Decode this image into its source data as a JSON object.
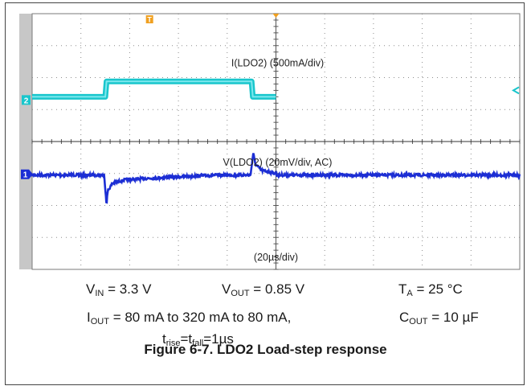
{
  "chart_data": {
    "type": "line",
    "title": "",
    "xlabel": "(20µs/div)",
    "time_per_div_us": 20,
    "divisions": {
      "x": 10,
      "y": 8
    },
    "grid": true,
    "series": [
      {
        "name": "I(LDO2) (500mA/div)",
        "channel": "2",
        "color": "#19c6cc",
        "scale_mA_per_div": 500,
        "x_us": [
          0,
          20,
          30,
          30.5,
          80,
          90,
          90.5,
          100
        ],
        "y_mA": [
          80,
          80,
          80,
          320,
          320,
          320,
          80,
          80
        ]
      },
      {
        "name": "V(LDO2) (20mV/div, AC)",
        "channel": "1",
        "color": "#1c2ed4",
        "scale_mV_per_div": 20,
        "x_us": [
          0,
          20,
          29.5,
          30,
          30.5,
          31,
          33,
          38,
          48,
          60,
          75,
          89.5,
          90,
          90.7,
          91.5,
          94,
          100,
          100.5
        ],
        "y_mV": [
          0,
          0,
          0,
          -8,
          -18,
          -10,
          -5,
          -3,
          -2,
          -1,
          0,
          0,
          5,
          14,
          7,
          3,
          1,
          0
        ]
      }
    ],
    "trigger_marker": "T"
  },
  "conditions": {
    "vin": {
      "sym": "V",
      "sub": "IN",
      "val": " = 3.3 V"
    },
    "vout": {
      "sym": "V",
      "sub": "OUT",
      "val": " = 0.85 V"
    },
    "ta": {
      "sym": "T",
      "sub": "A",
      "val": " = 25 °C"
    },
    "iout": {
      "sym": "I",
      "sub": "OUT",
      "val": " = 80 mA to 320 mA to 80 mA,"
    },
    "cout": {
      "sym": "C",
      "sub": "OUT",
      "val": " = 10 µF"
    },
    "tr": {
      "t1": "t",
      "s1": "rise",
      "eq": "=",
      "t2": "t",
      "s2": "fall",
      "val": "=1µs"
    }
  },
  "caption": "Figure 6-7. LDO2 Load-step response"
}
